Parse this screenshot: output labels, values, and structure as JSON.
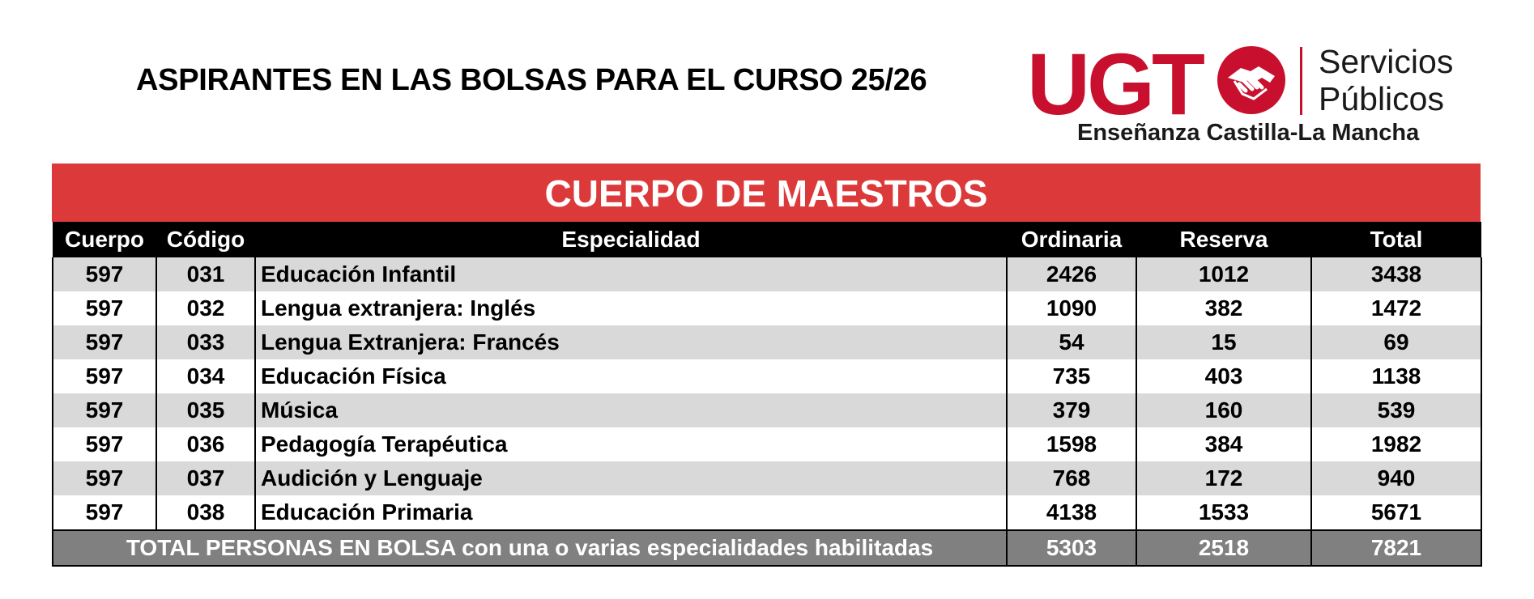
{
  "header": {
    "title": "ASPIRANTES EN LAS BOLSAS PARA EL CURSO 25/26"
  },
  "logo": {
    "brand": "UGT",
    "line1": "Servicios",
    "line2": "Públicos",
    "subtitle": "Enseñanza Castilla-La Mancha",
    "color": "#c8102e",
    "icon": "handshake-icon"
  },
  "table": {
    "banner": "CUERPO DE MAESTROS",
    "banner_color": "#dc3a3a",
    "headers": [
      "Cuerpo",
      "Código",
      "Especialidad",
      "Ordinaria",
      "Reserva",
      "Total"
    ],
    "rows": [
      {
        "cuerpo": "597",
        "codigo": "031",
        "especialidad": "Educación Infantil",
        "ordinaria": "2426",
        "reserva": "1012",
        "total": "3438"
      },
      {
        "cuerpo": "597",
        "codigo": "032",
        "especialidad": "Lengua extranjera: Inglés",
        "ordinaria": "1090",
        "reserva": "382",
        "total": "1472"
      },
      {
        "cuerpo": "597",
        "codigo": "033",
        "especialidad": "Lengua Extranjera: Francés",
        "ordinaria": "54",
        "reserva": "15",
        "total": "69"
      },
      {
        "cuerpo": "597",
        "codigo": "034",
        "especialidad": "Educación Física",
        "ordinaria": "735",
        "reserva": "403",
        "total": "1138"
      },
      {
        "cuerpo": "597",
        "codigo": "035",
        "especialidad": "Música",
        "ordinaria": "379",
        "reserva": "160",
        "total": "539"
      },
      {
        "cuerpo": "597",
        "codigo": "036",
        "especialidad": "Pedagogía Terapéutica",
        "ordinaria": "1598",
        "reserva": "384",
        "total": "1982"
      },
      {
        "cuerpo": "597",
        "codigo": "037",
        "especialidad": "Audición y Lenguaje",
        "ordinaria": "768",
        "reserva": "172",
        "total": "940"
      },
      {
        "cuerpo": "597",
        "codigo": "038",
        "especialidad": "Educación Primaria",
        "ordinaria": "4138",
        "reserva": "1533",
        "total": "5671"
      }
    ],
    "footer": {
      "label": "TOTAL PERSONAS EN BOLSA con una o varias especialidades habilitadas",
      "ordinaria": "5303",
      "reserva": "2518",
      "total": "7821"
    }
  }
}
